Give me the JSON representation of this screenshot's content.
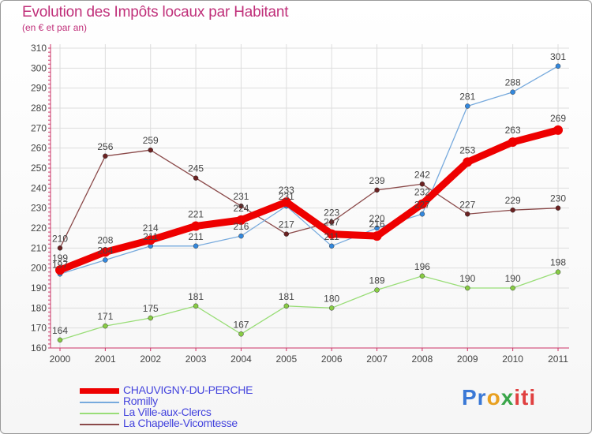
{
  "chart_data": {
    "type": "line",
    "title": "Evolution des Impôts locaux par Habitant",
    "subtitle": "(en € et par an)",
    "x": [
      "2000",
      "2001",
      "2002",
      "2003",
      "2004",
      "2005",
      "2006",
      "2007",
      "2008",
      "2009",
      "2010",
      "2011"
    ],
    "ylim": [
      160,
      310
    ],
    "yticks": [
      160,
      170,
      180,
      190,
      200,
      210,
      220,
      230,
      240,
      250,
      260,
      270,
      280,
      290,
      300,
      310
    ],
    "grid": true,
    "series": [
      {
        "name": "La Ville-aux-Clercs",
        "color": "#99dd77",
        "marker": "#88cc44",
        "values": [
          164,
          171,
          175,
          181,
          167,
          181,
          180,
          189,
          196,
          190,
          190,
          198
        ]
      },
      {
        "name": "La Chapelle-Vicomtesse",
        "color": "#8b4a4a",
        "marker": "#6b2222",
        "values": [
          210,
          256,
          259,
          245,
          231,
          217,
          223,
          239,
          242,
          227,
          229,
          230
        ]
      },
      {
        "name": "Romilly",
        "color": "#77aadd",
        "marker": "#3388dd",
        "values": [
          197,
          204,
          211,
          211,
          216,
          231,
          211,
          220,
          227,
          281,
          288,
          301
        ]
      },
      {
        "name": "CHAUVIGNY-DU-PERCHE",
        "color": "#ee0000",
        "marker": "#ee0000",
        "values": [
          199,
          208,
          214,
          221,
          224,
          233,
          217,
          216,
          232,
          253,
          263,
          269
        ]
      }
    ],
    "legend_order": [
      "CHAUVIGNY-DU-PERCHE",
      "Romilly",
      "La Ville-aux-Clercs",
      "La Chapelle-Vicomtesse"
    ]
  },
  "logo": {
    "p1": "Pr",
    "p2": "o",
    "p3": "x",
    "p4": "iti"
  }
}
